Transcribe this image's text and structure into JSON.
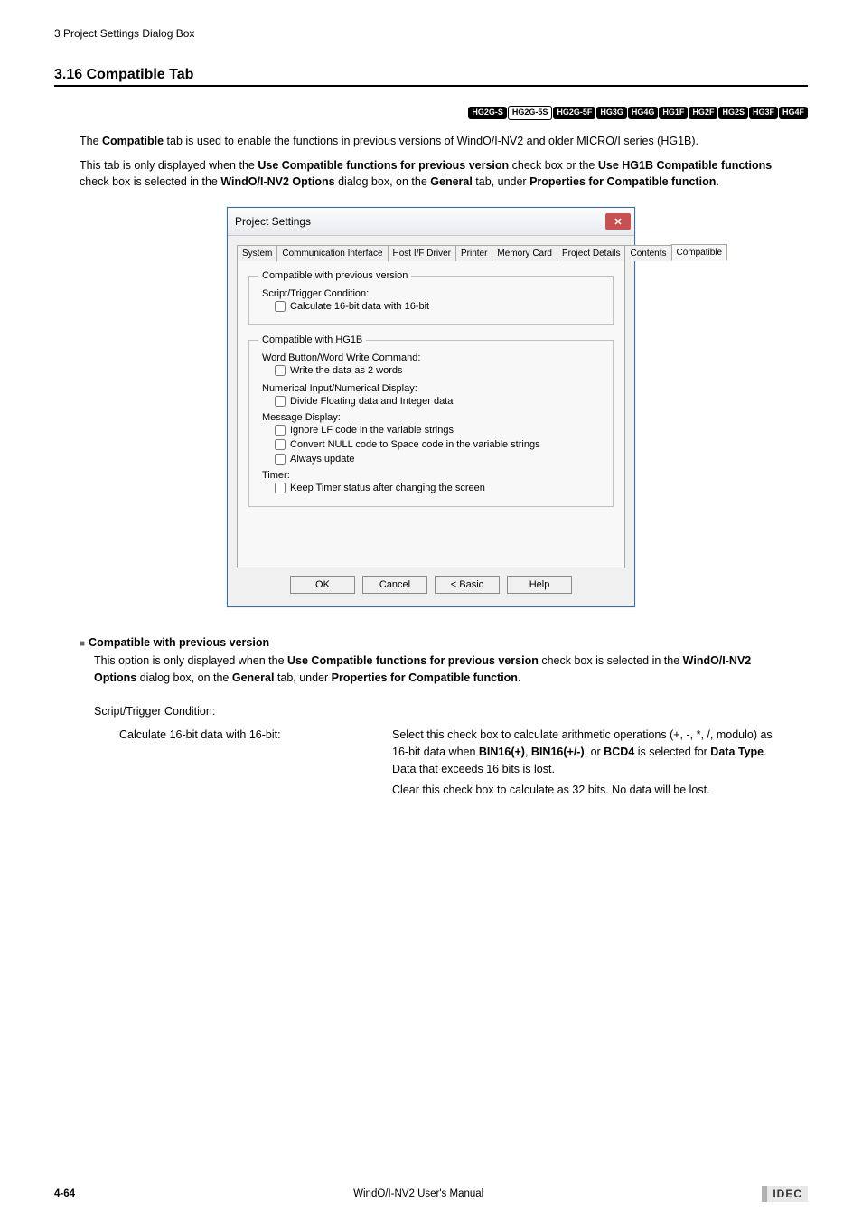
{
  "header_breadcrumb": "3 Project Settings Dialog Box",
  "section_number_title": "3.16 Compatible Tab",
  "badges": [
    {
      "label": "HG2G-S",
      "outline": false
    },
    {
      "label": "HG2G-5S",
      "outline": true
    },
    {
      "label": "HG2G-5F",
      "outline": false
    },
    {
      "label": "HG3G",
      "outline": false
    },
    {
      "label": "HG4G",
      "outline": false
    },
    {
      "label": "HG1F",
      "outline": false
    },
    {
      "label": "HG2F",
      "outline": false
    },
    {
      "label": "HG2S",
      "outline": false
    },
    {
      "label": "HG3F",
      "outline": false
    },
    {
      "label": "HG4F",
      "outline": false
    }
  ],
  "intro_paragraphs": {
    "p1_pre": "The ",
    "p1_b1": "Compatible",
    "p1_post": " tab is used to enable the functions in previous versions of WindO/I-NV2 and older MICRO/I series (HG1B).",
    "p2_pre": "This tab is only displayed when the ",
    "p2_b1": "Use Compatible functions for previous version",
    "p2_mid1": " check box or the ",
    "p2_b2": "Use HG1B Compatible functions",
    "p2_mid2": " check box is selected in the ",
    "p2_b3": "WindO/I-NV2 Options",
    "p2_mid3": " dialog box, on the ",
    "p2_b4": "General",
    "p2_mid4": " tab, under ",
    "p2_b5": "Properties for Compatible function",
    "p2_end": "."
  },
  "dialog": {
    "title": "Project Settings",
    "tabs": [
      "System",
      "Communication Interface",
      "Host I/F Driver",
      "Printer",
      "Memory Card",
      "Project Details",
      "Contents",
      "Compatible"
    ],
    "active_tab_index": 7,
    "group1": {
      "legend": "Compatible with previous version",
      "line1": "Script/Trigger Condition:",
      "chk1": "Calculate 16-bit data with 16-bit"
    },
    "group2": {
      "legend": "Compatible with HG1B",
      "line1": "Word Button/Word Write Command:",
      "chk1": "Write the data as 2 words",
      "line2": "Numerical Input/Numerical Display:",
      "chk2": "Divide Floating data and Integer data",
      "line3": "Message Display:",
      "chk3": "Ignore LF code in the variable strings",
      "chk4": "Convert NULL code to Space code in the variable strings",
      "chk5": "Always update",
      "line4": "Timer:",
      "chk6": "Keep Timer status after changing the screen"
    },
    "buttons": {
      "ok": "OK",
      "cancel": "Cancel",
      "basic": "< Basic",
      "help": "Help"
    }
  },
  "compat_prev": {
    "heading": "Compatible with previous version",
    "desc_pre": "This option is only displayed when the ",
    "desc_b1": "Use Compatible functions for previous version",
    "desc_mid1": " check box is selected in the ",
    "desc_b2": "WindO/I-NV2 Options",
    "desc_mid2": " dialog box, on the ",
    "desc_b3": "General",
    "desc_mid3": " tab, under ",
    "desc_b4": "Properties for Compatible function",
    "desc_end": ".",
    "sub1": "Script/Trigger Condition:",
    "opt1_label": "Calculate 16-bit data with 16-bit:",
    "opt1_desc_pre": "Select this check box to calculate arithmetic operations (+, -, *, /, modulo) as 16-bit data when ",
    "opt1_d_b1": "BIN16(+)",
    "opt1_d_m1": ", ",
    "opt1_d_b2": "BIN16(+/-)",
    "opt1_d_m2": ", or ",
    "opt1_d_b3": "BCD4",
    "opt1_d_m3": " is selected for ",
    "opt1_d_b4": "Data Type",
    "opt1_d_m4": ". Data that exceeds 16 bits is lost.",
    "opt1_desc2": "Clear this check box to calculate as 32 bits. No data will be lost."
  },
  "footer": {
    "page_num": "4-64",
    "manual_title": "WindO/I-NV2 User's Manual",
    "logo": "IDEC"
  },
  "colors": {
    "badge_bg": "#000000",
    "badge_fg": "#ffffff",
    "dialog_border": "#3a6ea5",
    "close_bg": "#c75050",
    "panel_bg": "#f8f8f8",
    "body_bg": "#f0f0f0"
  }
}
